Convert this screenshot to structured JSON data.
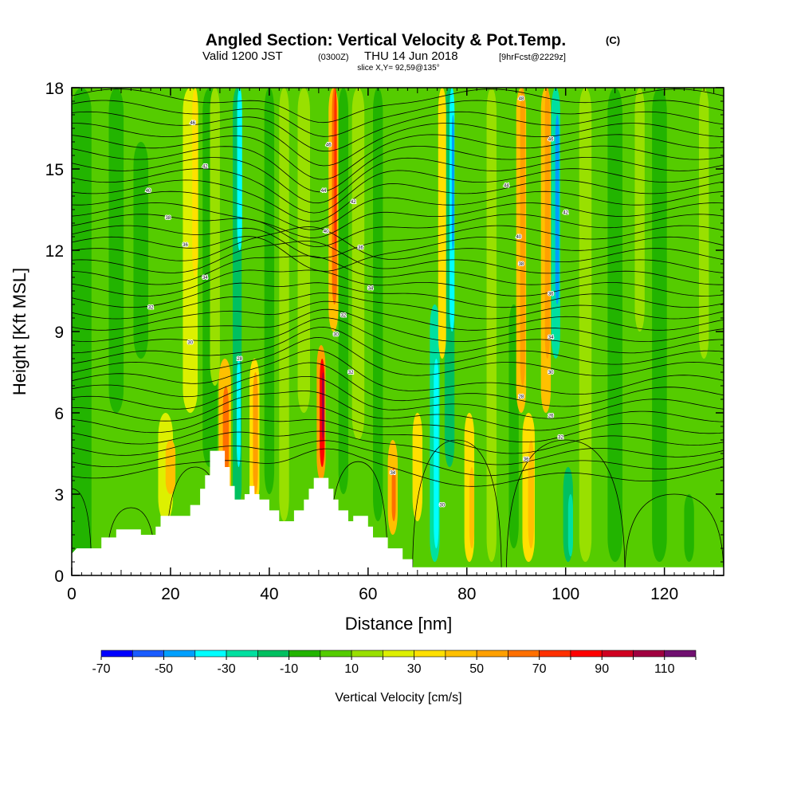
{
  "titles": {
    "main": "Angled Section: Vertical Velocity & Pot.Temp.",
    "main_suffix": "(C)",
    "sub_a": "Valid 1200 JST",
    "sub_b": "(0300Z)",
    "sub_c": "THU 14 Jun 2018",
    "sub_d": "[9hrFcst@2229z]",
    "slice": "slice X,Y= 92,59@135°"
  },
  "chart_data": {
    "type": "heatmap",
    "xlabel": "Distance [nm]",
    "ylabel": "Height [Kft MSL]",
    "xlim": [
      0,
      132
    ],
    "ylim": [
      0,
      18
    ],
    "x_ticks": [
      0,
      20,
      40,
      60,
      80,
      100,
      120
    ],
    "y_ticks": [
      0,
      3,
      6,
      9,
      12,
      15,
      18
    ],
    "colorbar": {
      "title": "Vertical Velocity [cm/s]",
      "tick_labels": [
        "-70",
        "-50",
        "-30",
        "-10",
        "10",
        "30",
        "50",
        "70",
        "90",
        "110"
      ],
      "levels": [
        -70,
        -60,
        -50,
        -40,
        -30,
        -20,
        -10,
        0,
        10,
        20,
        30,
        40,
        50,
        60,
        70,
        80,
        90,
        100,
        110,
        120
      ],
      "colors": [
        "#0000ff",
        "#1a5cff",
        "#00a0ff",
        "#00ffff",
        "#00e0a0",
        "#00c060",
        "#22b400",
        "#55cc00",
        "#99e000",
        "#ddf000",
        "#ffe000",
        "#ffc000",
        "#ffa000",
        "#ff7000",
        "#ff3000",
        "#ff0000",
        "#d00020",
        "#a00040",
        "#701070"
      ]
    },
    "updraft_columns_nm": [
      31,
      37,
      50.5,
      65,
      70,
      82,
      92,
      96
    ],
    "downdraft_columns_nm": [
      33.5,
      52.5,
      73.5,
      77,
      98
    ],
    "terrain_kft": [
      [
        0,
        0.8
      ],
      [
        1,
        1.0
      ],
      [
        6,
        1.0
      ],
      [
        6,
        1.4
      ],
      [
        9,
        1.4
      ],
      [
        9,
        1.7
      ],
      [
        14,
        1.7
      ],
      [
        14,
        1.5
      ],
      [
        17,
        1.5
      ],
      [
        17,
        1.8
      ],
      [
        18,
        1.8
      ],
      [
        18,
        2.2
      ],
      [
        20,
        2.2
      ],
      [
        20,
        2.2
      ],
      [
        24,
        2.2
      ],
      [
        24,
        2.6
      ],
      [
        26,
        2.6
      ],
      [
        26,
        3.2
      ],
      [
        27,
        3.2
      ],
      [
        27,
        3.7
      ],
      [
        28,
        3.7
      ],
      [
        28,
        4.6
      ],
      [
        31,
        4.6
      ],
      [
        31,
        4.0
      ],
      [
        32,
        4.0
      ],
      [
        32,
        3.3
      ],
      [
        33,
        3.3
      ],
      [
        33,
        2.8
      ],
      [
        35,
        2.8
      ],
      [
        35,
        3.0
      ],
      [
        36,
        3.0
      ],
      [
        36,
        3.3
      ],
      [
        37,
        3.3
      ],
      [
        37,
        3.0
      ],
      [
        38,
        3.0
      ],
      [
        38,
        2.8
      ],
      [
        40,
        2.8
      ],
      [
        40,
        2.4
      ],
      [
        42,
        2.4
      ],
      [
        42,
        2.0
      ],
      [
        45,
        2.0
      ],
      [
        45,
        2.4
      ],
      [
        47,
        2.4
      ],
      [
        47,
        2.8
      ],
      [
        48,
        2.8
      ],
      [
        48,
        3.2
      ],
      [
        49,
        3.2
      ],
      [
        49,
        3.6
      ],
      [
        52,
        3.6
      ],
      [
        52,
        3.2
      ],
      [
        53,
        3.2
      ],
      [
        53,
        2.8
      ],
      [
        54,
        2.8
      ],
      [
        54,
        2.4
      ],
      [
        56,
        2.4
      ],
      [
        56,
        2.0
      ],
      [
        57,
        2.0
      ],
      [
        57,
        2.2
      ],
      [
        60,
        2.2
      ],
      [
        60,
        1.8
      ],
      [
        61,
        1.8
      ],
      [
        61,
        1.4
      ],
      [
        64,
        1.4
      ],
      [
        64,
        1.0
      ],
      [
        67,
        1.0
      ],
      [
        67,
        0.6
      ],
      [
        69,
        0.6
      ],
      [
        69,
        0.3
      ],
      [
        72,
        0.3
      ],
      [
        72,
        0.3
      ],
      [
        132,
        0.3
      ]
    ]
  },
  "contour_labels": [
    "46",
    "42",
    "40",
    "38",
    "36",
    "34",
    "32",
    "30",
    "46",
    "44",
    "42",
    "40",
    "36",
    "34",
    "32",
    "30",
    "28",
    "48",
    "46",
    "44",
    "42",
    "40",
    "38",
    "36",
    "34",
    "32",
    "30",
    "28",
    "26",
    "32",
    "36",
    "34",
    "30"
  ]
}
